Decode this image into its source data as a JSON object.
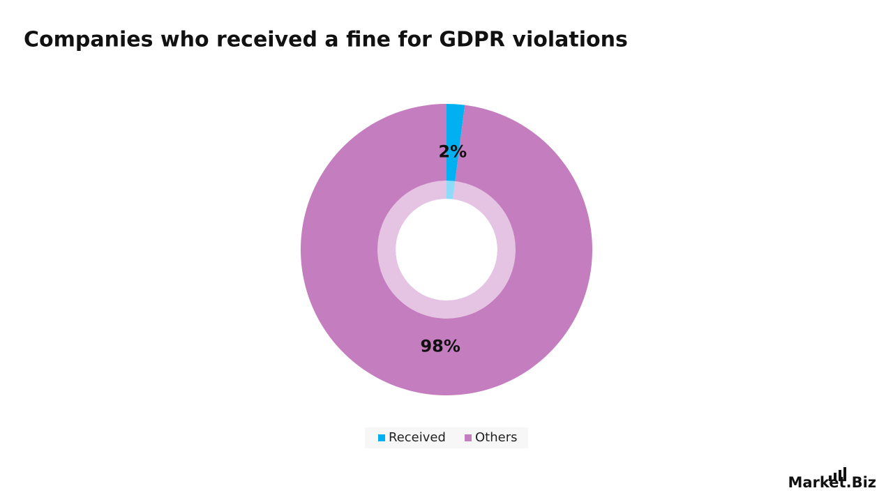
{
  "chart_data": {
    "type": "pie",
    "title": "Companies who received a fine for GDPR violations",
    "categories": [
      "Received",
      "Others"
    ],
    "values": [
      2,
      98
    ],
    "value_labels": [
      "2%",
      "98%"
    ],
    "colors": [
      "#00b0f0",
      "#c47dbe"
    ],
    "legend": "bottom"
  },
  "logo": "Market.Biz"
}
